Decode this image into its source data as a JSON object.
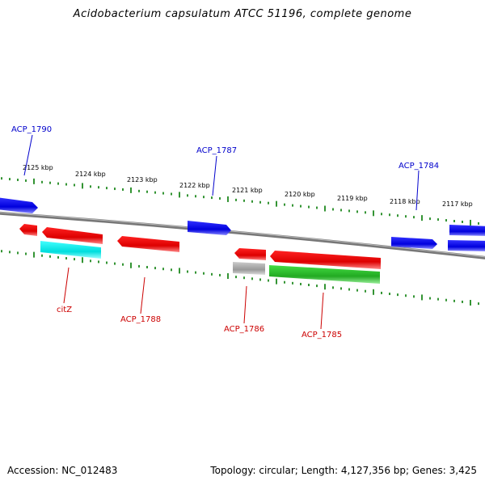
{
  "title": "Acidobacterium capsulatum ATCC 51196, complete genome",
  "accession": "Accession: NC_012483",
  "summary": "Topology: circular; Length: 4,127,356 bp; Genes: 3,425",
  "colors": {
    "backbone": "#808080",
    "tick": "#007a00",
    "forward_gene": "#0000e6",
    "reverse_gene": "#e60000",
    "cyan_gene": "#00e6e6",
    "green_gene": "#22bb22",
    "grey_gene": "#aaaaaa",
    "label_forward": "#0000cc",
    "label_reverse": "#cc0000"
  },
  "kbp_labels": [
    "2125 kbp",
    "2124 kbp",
    "2123 kbp",
    "2122 kbp",
    "2121 kbp",
    "2120 kbp",
    "2119 kbp",
    "2118 kbp",
    "2117 kbp"
  ],
  "forward_gene_labels": [
    "ACP_1790",
    "ACP_1787",
    "ACP_1784"
  ],
  "reverse_gene_labels": [
    "citZ",
    "ACP_1788",
    "ACP_1786",
    "ACP_1785"
  ]
}
